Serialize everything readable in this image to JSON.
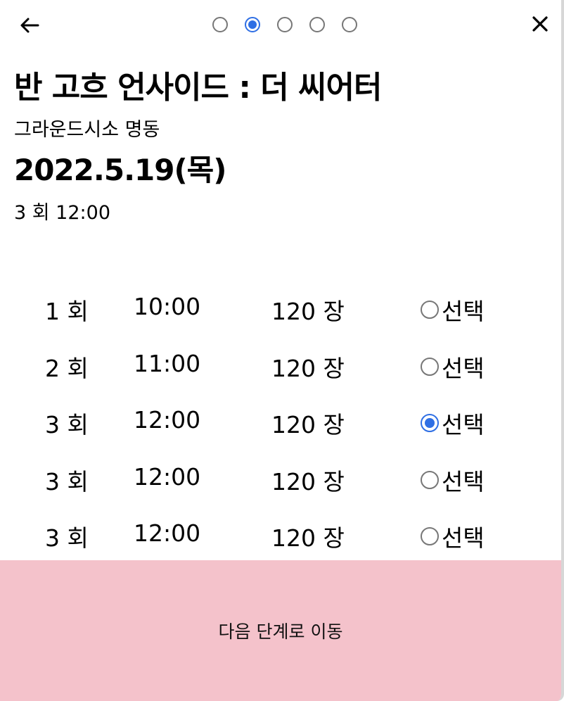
{
  "header": {
    "back_icon": "arrow-left-icon",
    "close_icon": "close-icon",
    "steps": [
      {
        "active": false
      },
      {
        "active": true
      },
      {
        "active": false
      },
      {
        "active": false
      },
      {
        "active": false
      }
    ]
  },
  "event": {
    "title": "반 고흐 언사이드 : 더 씨어터",
    "venue": "그라운드시소 명동",
    "date": "2022.5.19(목)",
    "selected_session": "3 회 12:00"
  },
  "sessions": [
    {
      "round": "1 회",
      "time": "10:00",
      "seats": "120 장",
      "select_label": "선택",
      "selected": false
    },
    {
      "round": "2 회",
      "time": "11:00",
      "seats": "120 장",
      "select_label": "선택",
      "selected": false
    },
    {
      "round": "3 회",
      "time": "12:00",
      "seats": "120 장",
      "select_label": "선택",
      "selected": true
    },
    {
      "round": "3 회",
      "time": "12:00",
      "seats": "120 장",
      "select_label": "선택",
      "selected": false
    },
    {
      "round": "3 회",
      "time": "12:00",
      "seats": "120 장",
      "select_label": "선택",
      "selected": false
    }
  ],
  "footer": {
    "next_label": "다음 단계로 이동",
    "next_bg": "#f4c2cb"
  },
  "colors": {
    "accent": "#2f6fe4"
  }
}
